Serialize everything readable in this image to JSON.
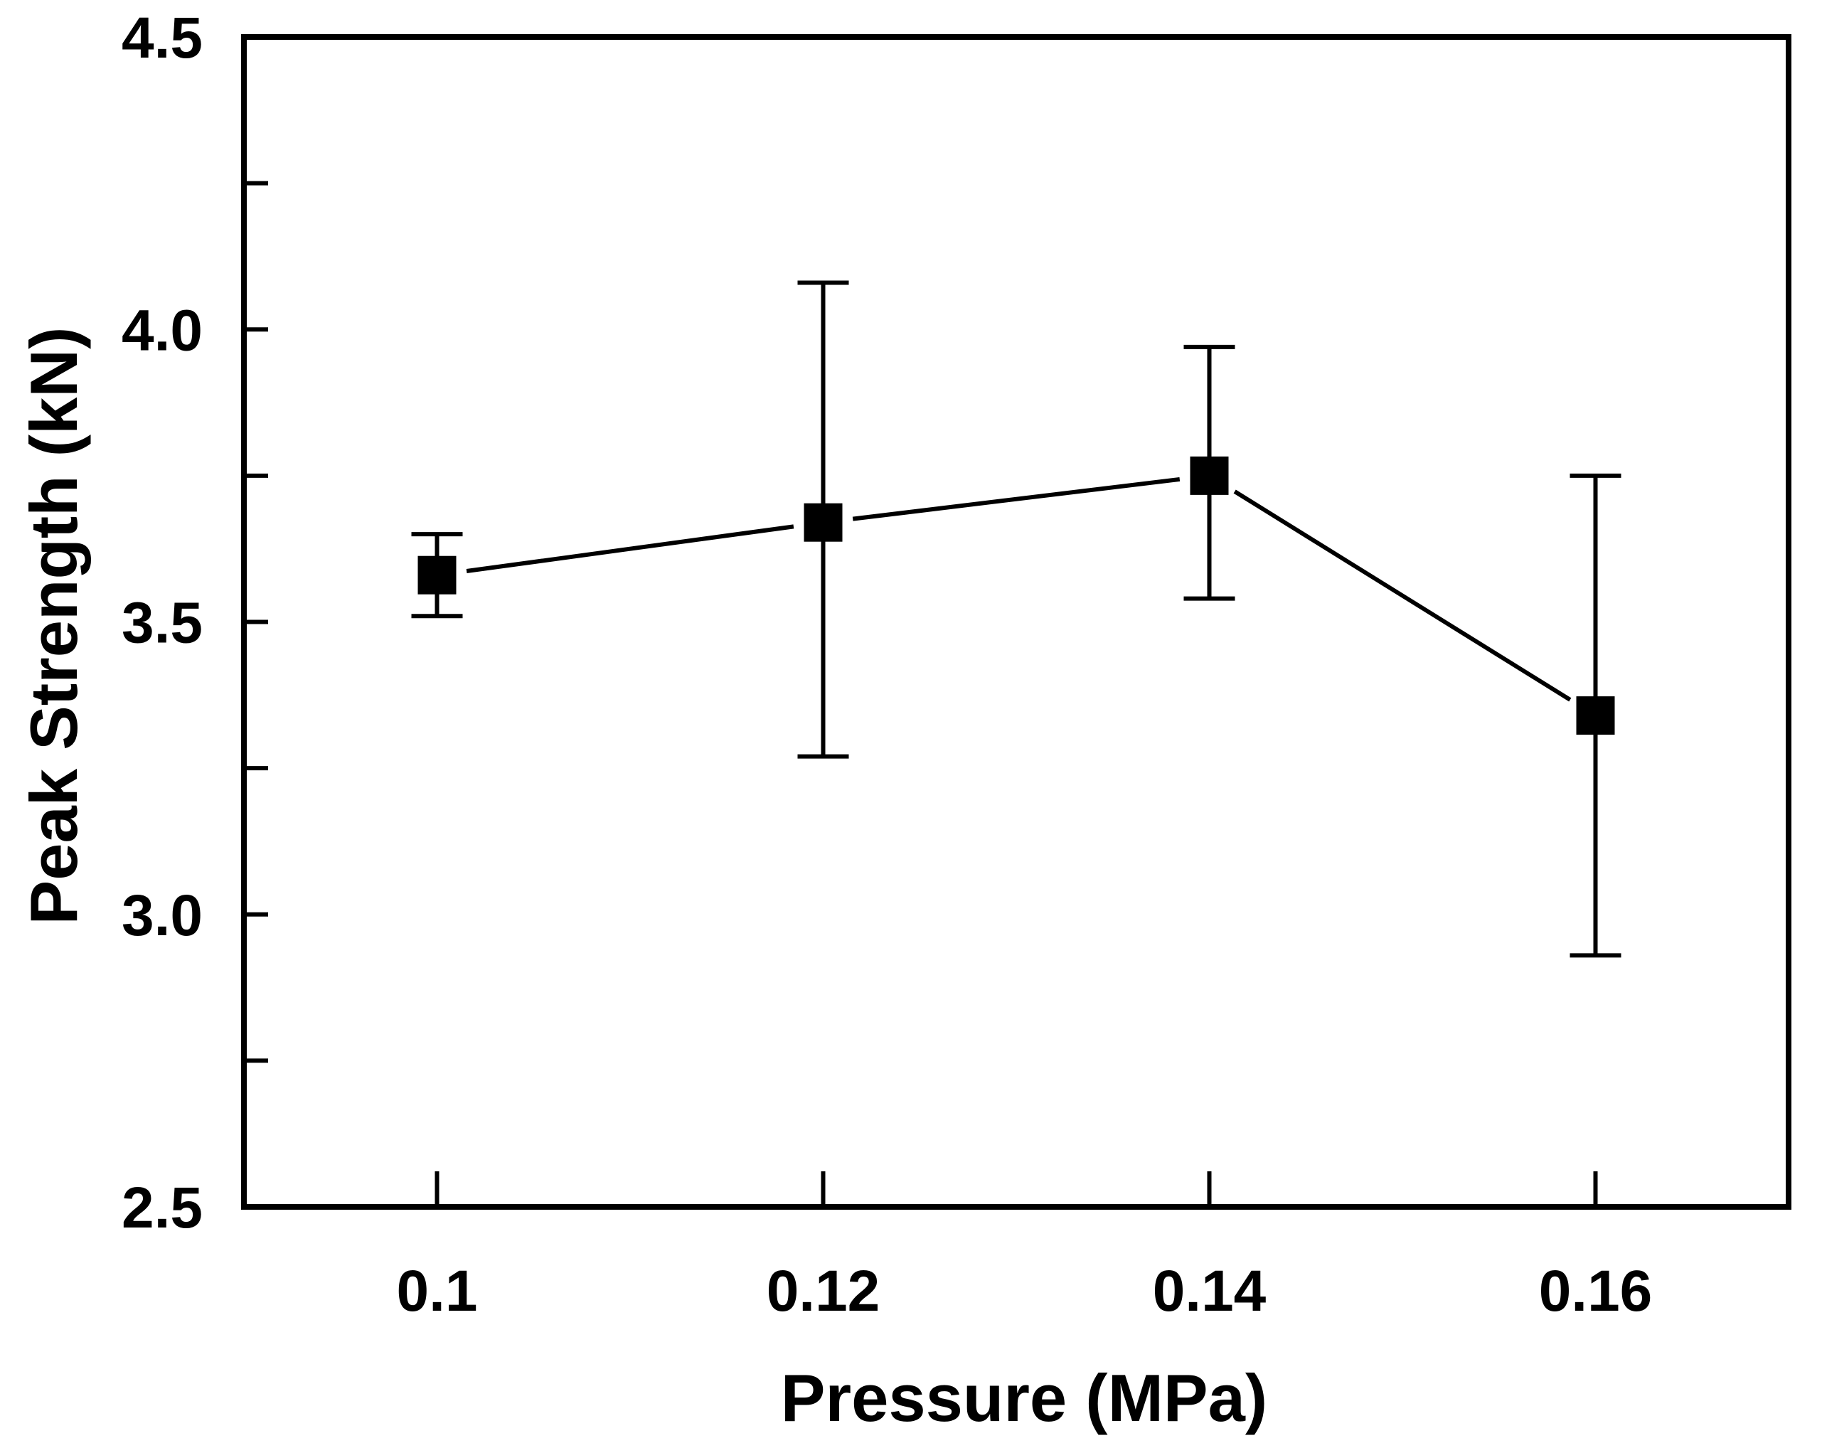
{
  "chart_data": {
    "type": "line",
    "title": "",
    "xlabel": "Pressure (MPa)",
    "ylabel": "Peak Strength (kN)",
    "xlim": [
      0.09,
      0.17
    ],
    "ylim": [
      2.5,
      4.5
    ],
    "grid": false,
    "legend": "none",
    "x_ticks": [
      {
        "value": 0.1,
        "label": "0.1"
      },
      {
        "value": 0.12,
        "label": "0.12"
      },
      {
        "value": 0.14,
        "label": "0.14"
      },
      {
        "value": 0.16,
        "label": "0.16"
      }
    ],
    "y_ticks": [
      {
        "value": 2.5,
        "label": "2.5"
      },
      {
        "value": 2.75,
        "label": ""
      },
      {
        "value": 3.0,
        "label": "3.0"
      },
      {
        "value": 3.25,
        "label": ""
      },
      {
        "value": 3.5,
        "label": "3.5"
      },
      {
        "value": 3.75,
        "label": ""
      },
      {
        "value": 4.0,
        "label": "4.0"
      },
      {
        "value": 4.25,
        "label": ""
      },
      {
        "value": 4.5,
        "label": "4.5"
      }
    ],
    "series": [
      {
        "name": "Peak Strength",
        "marker": "square",
        "color": "#000000",
        "x": [
          0.1,
          0.12,
          0.14,
          0.16
        ],
        "y": [
          3.58,
          3.67,
          3.75,
          3.34
        ],
        "error_low": [
          3.51,
          3.27,
          3.54,
          2.93
        ],
        "error_high": [
          3.65,
          4.08,
          3.97,
          3.75
        ]
      }
    ]
  }
}
